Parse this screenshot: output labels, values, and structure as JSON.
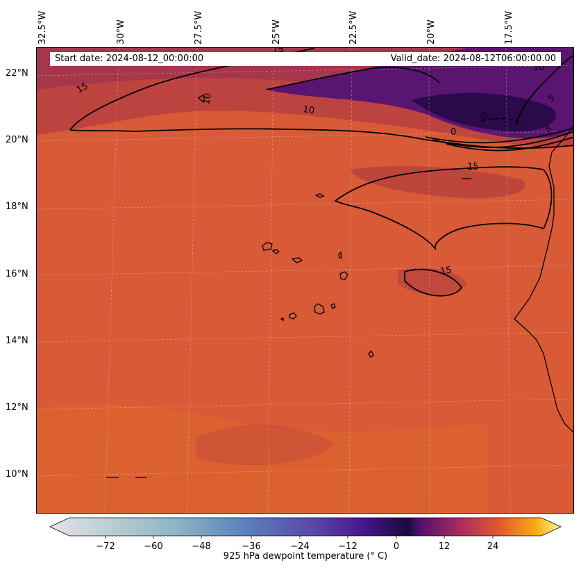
{
  "header": {
    "start_date": "Start date: 2024-08-12_00:00:00",
    "valid_date": "Valid_date: 2024-08-12T06:00:00.00"
  },
  "axes": {
    "lon_labels": [
      "32.5°W",
      "30°W",
      "27.5°W",
      "25°W",
      "22.5°W",
      "20°W",
      "17.5°W"
    ],
    "lat_labels": [
      "22°N",
      "20°N",
      "18°N",
      "16°N",
      "14°N",
      "12°N",
      "10°N"
    ]
  },
  "contour_labels": [
    "15",
    "10",
    "10",
    "15",
    "-5",
    "0",
    "5",
    "5",
    "10",
    "15",
    "15"
  ],
  "colorbar": {
    "ticks": [
      "−72",
      "−60",
      "−48",
      "−36",
      "−24",
      "−12",
      "0",
      "12",
      "24"
    ],
    "label": "925 hPa dewpoint temperature ($^\\circ$C)",
    "label_rendered": "925 hPa dewpoint temperature (° C)",
    "colormap": "inferno",
    "range": [
      -84,
      36
    ],
    "extend": "both"
  },
  "colors": {
    "field_dominant": "#d85a36",
    "field_dark": "#4a0f6e",
    "field_darkest": "#2a0a4a",
    "coastline": "#000000",
    "contour": "#000000"
  }
}
